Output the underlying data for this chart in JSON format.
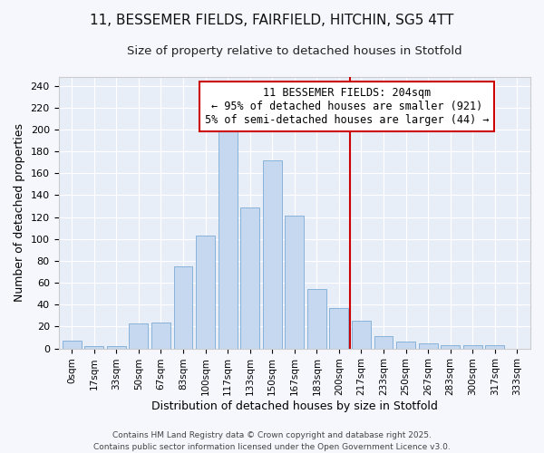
{
  "title_line1": "11, BESSEMER FIELDS, FAIRFIELD, HITCHIN, SG5 4TT",
  "title_line2": "Size of property relative to detached houses in Stotfold",
  "xlabel": "Distribution of detached houses by size in Stotfold",
  "ylabel": "Number of detached properties",
  "bar_labels": [
    "0sqm",
    "17sqm",
    "33sqm",
    "50sqm",
    "67sqm",
    "83sqm",
    "100sqm",
    "117sqm",
    "133sqm",
    "150sqm",
    "167sqm",
    "183sqm",
    "200sqm",
    "217sqm",
    "233sqm",
    "250sqm",
    "267sqm",
    "283sqm",
    "300sqm",
    "317sqm",
    "333sqm"
  ],
  "bar_values": [
    7,
    2,
    2,
    23,
    24,
    75,
    103,
    200,
    129,
    172,
    121,
    54,
    37,
    25,
    11,
    6,
    5,
    3,
    3,
    3,
    0
  ],
  "bar_color": "#c5d8f0",
  "bar_edgecolor": "#7aaad4",
  "vline_x": 12.5,
  "vline_color": "#cc0000",
  "annotation_text": "11 BESSEMER FIELDS: 204sqm\n← 95% of detached houses are smaller (921)\n5% of semi-detached houses are larger (44) →",
  "annotation_box_edgecolor": "#cc0000",
  "annotation_box_facecolor": "#ffffff",
  "yticks": [
    0,
    20,
    40,
    60,
    80,
    100,
    120,
    140,
    160,
    180,
    200,
    220,
    240
  ],
  "ylim": [
    0,
    248
  ],
  "plot_bg_color": "#e8eef8",
  "fig_bg_color": "#f5f7fc",
  "grid_color": "#ffffff",
  "footer": "Contains HM Land Registry data © Crown copyright and database right 2025.\nContains public sector information licensed under the Open Government Licence v3.0.",
  "title_fontsize": 11,
  "subtitle_fontsize": 9.5,
  "annotation_fontsize": 8.5
}
